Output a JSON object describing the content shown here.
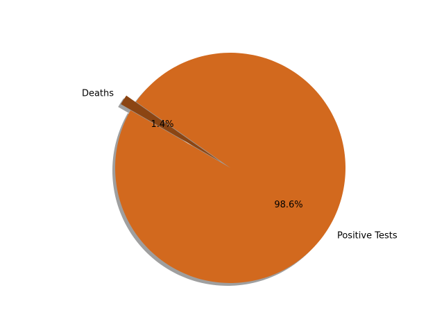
{
  "chart_data": {
    "type": "pie",
    "title": "",
    "slices": [
      {
        "label": "Positive Tests",
        "value": 98.6,
        "pct_label": "98.6%",
        "color": "#d2691e",
        "explode": 0.0
      },
      {
        "label": "Deaths",
        "value": 1.4,
        "pct_label": "1.4%",
        "color": "#8b4513",
        "explode": 0.1
      }
    ],
    "start_angle_deg": 150,
    "counterclock": true,
    "shadow": true,
    "shadow_color": "#7f7f7f",
    "autopct": "%1.1f%%",
    "legend": "none"
  }
}
